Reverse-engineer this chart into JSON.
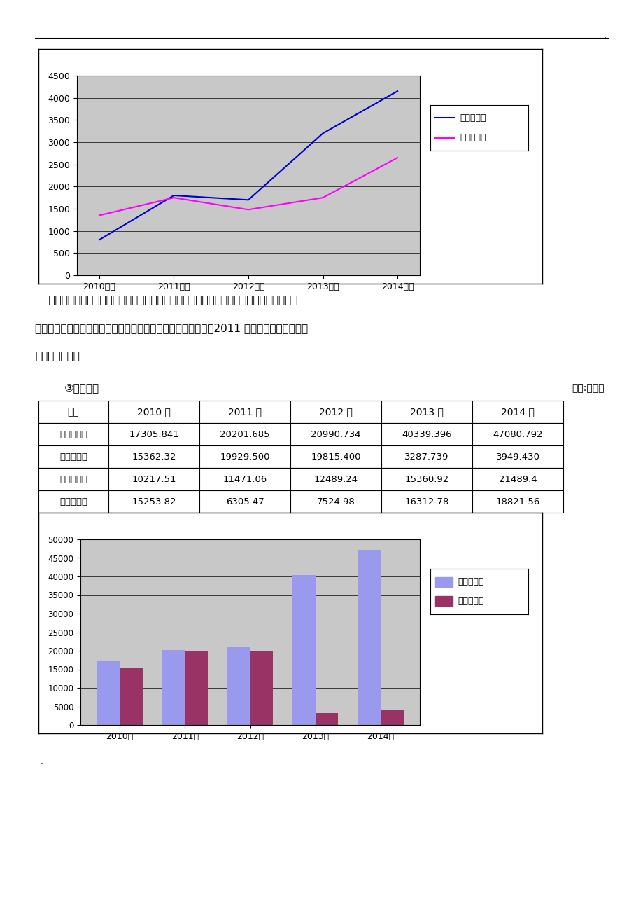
{
  "line_years": [
    "2010年度",
    "2011年度",
    "2012年度",
    "2013年度",
    "2014年度"
  ],
  "yili_profit": [
    800,
    1800,
    1700,
    3200,
    4150
  ],
  "mengniu_profit": [
    1350,
    1750,
    1480,
    1750,
    2650
  ],
  "line_ylim": [
    0,
    4500
  ],
  "line_yticks": [
    0,
    500,
    1000,
    1500,
    2000,
    2500,
    3000,
    3500,
    4000,
    4500
  ],
  "line_legend": [
    "伊利净利润",
    "蒙牛净利润"
  ],
  "line_color_yili": "#0000CD",
  "line_color_mengniu": "#FF00FF",
  "chart_bg": "#C8C8C8",
  "paragraph_line1": "    利润是企业经营成果的体现，也反应一定的行业状况，从上表可以看出，在近五年以内，",
  "paragraph_line2": "伊利蒙牛净利润都有稳步的增长，特别是伊利的增速更加明显，2011 年反超蒙牛，重新成为",
  "paragraph_line3": "行业的领头羊。",
  "section_title": "③财务状况",
  "section_unit": "单位:百万元",
  "table_headers": [
    "项目",
    "2010 年",
    "2011 年",
    "2012 年",
    "2013 年",
    "2014 年"
  ],
  "table_rows": [
    [
      "蒙牛总资产",
      "17305.841",
      "20201.685",
      "20990.734",
      "40339.396",
      "47080.792"
    ],
    [
      "伊利总资产",
      "15362.32",
      "19929.500",
      "19815.400",
      "3287.739",
      "3949.430"
    ],
    [
      "蒙牛净资产",
      "10217.51",
      "11471.06",
      "12489.24",
      "15360.92",
      "21489.4"
    ],
    [
      "伊利净资产",
      "15253.82",
      "6305.47",
      "7524.98",
      "16312.78",
      "18821.56"
    ]
  ],
  "bar_years": [
    "2010年",
    "2011年",
    "2012年",
    "2013年",
    "2014年"
  ],
  "mengniu_assets": [
    17305.841,
    20201.685,
    20990.734,
    40339.396,
    47080.792
  ],
  "yili_assets": [
    15362.32,
    19929.5,
    19815.4,
    3287.739,
    3949.43
  ],
  "bar_ylim": [
    0,
    50000
  ],
  "bar_yticks": [
    0,
    5000,
    10000,
    15000,
    20000,
    25000,
    30000,
    35000,
    40000,
    45000,
    50000
  ],
  "bar_color_mengniu": "#9999EE",
  "bar_color_yili": "#993366",
  "bar_legend": [
    "蒙牛总资产",
    "伊利总资产"
  ]
}
